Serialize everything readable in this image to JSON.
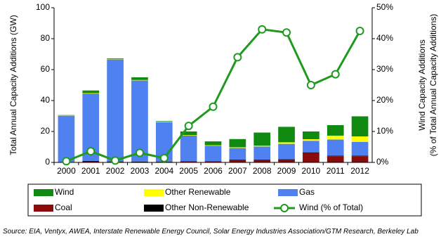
{
  "chart_data": {
    "type": "bar",
    "stacked": true,
    "categories": [
      "2000",
      "2001",
      "2002",
      "2003",
      "2004",
      "2005",
      "2006",
      "2007",
      "2008",
      "2009",
      "2010",
      "2011",
      "2012"
    ],
    "ylabel": "Total Annual Capacity Additions (GW)",
    "y2label": [
      "Wind Capacity Additions",
      "(% of Total Annual Capacity Additions)"
    ],
    "ylim": [
      0,
      100
    ],
    "yticks": [
      0,
      20,
      40,
      60,
      80,
      100
    ],
    "y2lim": [
      0,
      50
    ],
    "y2ticks": [
      {
        "value": 0,
        "label": "0%"
      },
      {
        "value": 10,
        "label": "10%"
      },
      {
        "value": 20,
        "label": "20%"
      },
      {
        "value": 30,
        "label": "30%"
      },
      {
        "value": 40,
        "label": "40%"
      },
      {
        "value": 50,
        "label": "50%"
      }
    ],
    "grid": false,
    "series": [
      {
        "name": "Coal",
        "color": "#8b0a0a",
        "values": [
          0.1,
          0.5,
          0.3,
          0.2,
          0.3,
          0.5,
          0.5,
          1.5,
          1.5,
          1.5,
          6,
          4,
          4
        ]
      },
      {
        "name": "Other Non-Renewable",
        "color": "#000000",
        "values": [
          0.2,
          0.5,
          0.3,
          0.3,
          0.2,
          0.3,
          0.3,
          0.3,
          0.3,
          0.5,
          0.5,
          0.3,
          0.3
        ]
      },
      {
        "name": "Gas",
        "color": "#4f81f0",
        "values": [
          30,
          43.5,
          66,
          52.5,
          25.5,
          16.5,
          10,
          7.5,
          8.5,
          10,
          7.5,
          10.5,
          9
        ]
      },
      {
        "name": "Other Renewable",
        "color": "#ffff00",
        "values": [
          0.5,
          0.3,
          0.3,
          0.3,
          0.3,
          0.3,
          0.3,
          0.5,
          0.5,
          1,
          1,
          2.5,
          3.5
        ]
      },
      {
        "name": "Wind",
        "color": "#108a10",
        "values": [
          0.1,
          1.7,
          0.4,
          1.7,
          0.4,
          2.4,
          2.5,
          5.3,
          8.5,
          10,
          5,
          6.8,
          13
        ]
      },
      {
        "name": "Wind (% of Total)",
        "color": "#1f9a1f",
        "type": "line",
        "axis": "y2",
        "values": [
          0.4,
          3.6,
          0.6,
          3.1,
          1.4,
          11.8,
          18,
          34,
          43,
          42,
          25,
          28.5,
          42.5
        ]
      }
    ],
    "source": "Source: EIA, Ventyx, AWEA, Interstate Renewable Energy Council, Solar Energy Industries Association/GTM Research, Berkeley Lab"
  }
}
